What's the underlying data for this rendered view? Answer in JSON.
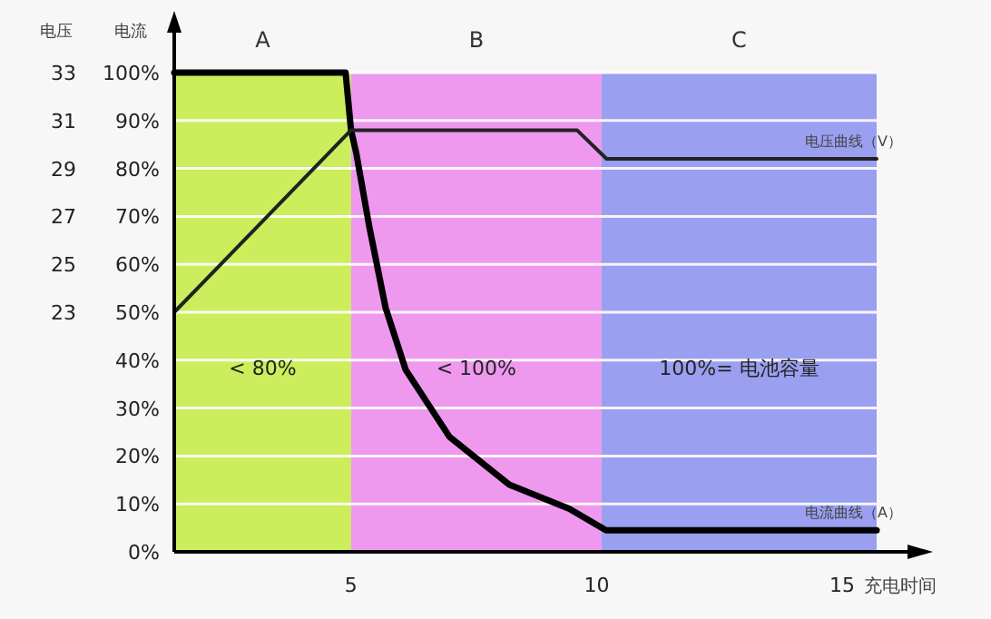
{
  "chart_data": {
    "type": "line",
    "ylabel": "电流",
    "y2label": "电压",
    "xlabel": "充电时间",
    "xlim": [
      1.4,
      15.7
    ],
    "xticks": [
      5,
      10,
      15
    ],
    "ylim": [
      0,
      100
    ],
    "yticks": [
      {
        "value": 0,
        "label": "0%"
      },
      {
        "value": 10,
        "label": "10%"
      },
      {
        "value": 20,
        "label": "20%"
      },
      {
        "value": 30,
        "label": "30%"
      },
      {
        "value": 40,
        "label": "40%"
      },
      {
        "value": 50,
        "label": "50%"
      },
      {
        "value": 60,
        "label": "60%"
      },
      {
        "value": 70,
        "label": "70%"
      },
      {
        "value": 80,
        "label": "80%"
      },
      {
        "value": 90,
        "label": "90%"
      },
      {
        "value": 100,
        "label": "100%"
      }
    ],
    "y2lim": [
      13,
      33
    ],
    "y2ticks": [
      23,
      25,
      27,
      29,
      31,
      33
    ],
    "grid": "y",
    "bands": [
      {
        "axis": "x",
        "from": 1.4,
        "to": 5,
        "label": "A",
        "color": "#ccee5c"
      },
      {
        "axis": "x",
        "from": 5,
        "to": 10.1,
        "label": "B",
        "color": "#ee99ee"
      },
      {
        "axis": "x",
        "from": 10.1,
        "to": 15.7,
        "label": "C",
        "color": "#9a9ff0"
      }
    ],
    "series": [
      {
        "name": "电流曲线（A）",
        "color": "#000000",
        "x": [
          1.4,
          4.89,
          5.0,
          5.11,
          5.37,
          5.7,
          6.11,
          7.0,
          8.22,
          9.44,
          10.19,
          15.7
        ],
        "values": [
          100,
          100,
          88,
          83,
          68,
          51,
          38,
          24,
          14,
          9,
          4.5,
          4.5
        ]
      },
      {
        "name": "电压曲线（V）",
        "color": "#222222",
        "axis": "y2",
        "x": [
          1.4,
          5.0,
          9.6,
          10.2,
          15.7
        ],
        "values": [
          23,
          30.6,
          30.6,
          29.4,
          29.4
        ]
      }
    ],
    "annotations": [
      "< 80%",
      "< 100%",
      "100%= 电池容量"
    ]
  }
}
